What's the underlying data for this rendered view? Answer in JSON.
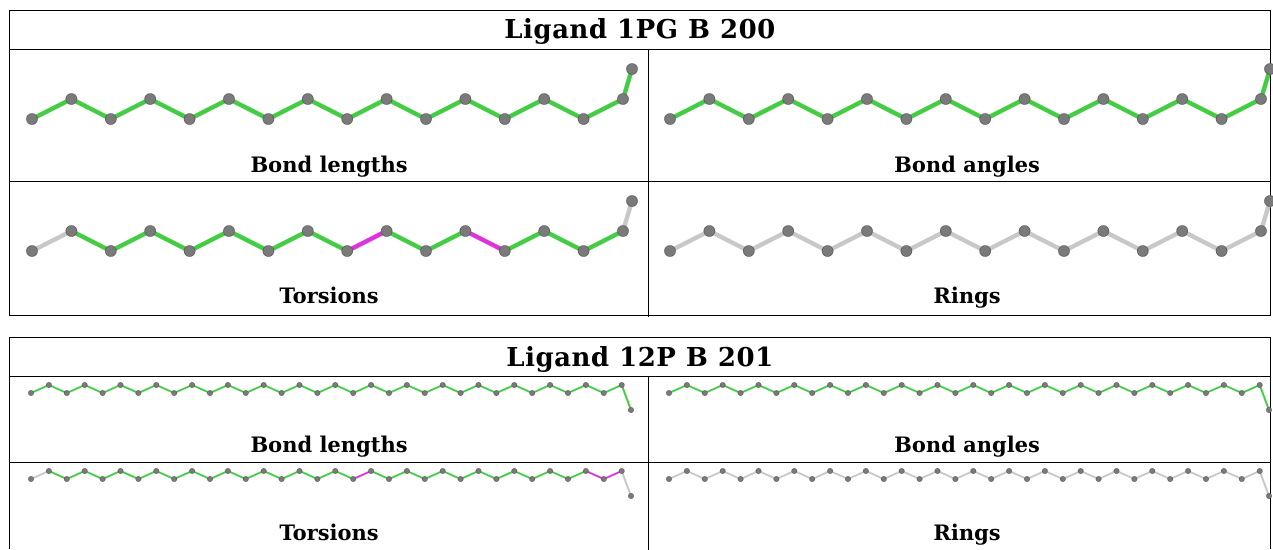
{
  "tables": [
    {
      "title": "Ligand 1PG B 200",
      "captions": {
        "top_left": "Bond lengths",
        "top_right": "Bond angles",
        "bottom_left": "Torsions",
        "bottom_right": "Rings"
      }
    },
    {
      "title": "Ligand 12P B 201",
      "captions": {
        "top_left": "Bond lengths",
        "top_right": "Bond angles",
        "bottom_left": "Torsions",
        "bottom_right": "Rings"
      }
    }
  ],
  "colors": {
    "good": "#44cc44",
    "outlier": "#dd33dd",
    "neutral": "#c8c8c8",
    "atom": "#7a7a7a",
    "border": "#000000"
  },
  "molecules": {
    "1pg": {
      "bond_lengths": "all-good",
      "bond_angles": "all-good",
      "torsions": "mixed",
      "rings": "none"
    },
    "12p": {
      "bond_lengths": "all-good",
      "bond_angles": "all-good",
      "torsions": "mixed",
      "rings": "none"
    }
  }
}
